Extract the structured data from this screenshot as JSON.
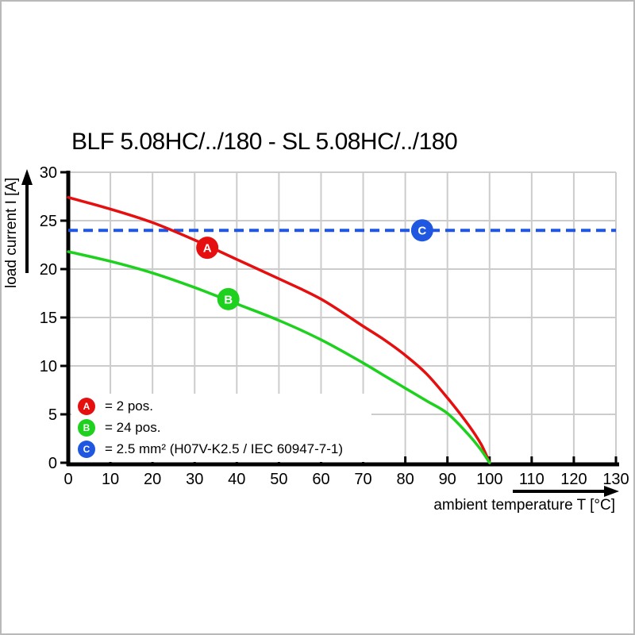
{
  "title": "BLF 5.08HC/../180 - SL 5.08HC/../180",
  "colors": {
    "red": "#e60f0f",
    "green": "#1ed11e",
    "blue": "#1f57e0",
    "grid": "#cccccc",
    "axis": "#000000",
    "background": "#ffffff",
    "frame": "#b9b9b9"
  },
  "chart_data": {
    "type": "line",
    "title": "BLF 5.08HC/../180 - SL 5.08HC/../180",
    "xlabel": "ambient temperature T [°C]",
    "ylabel": "load current I [A]",
    "xlim": [
      0,
      130
    ],
    "ylim": [
      0,
      30
    ],
    "xticks": [
      0,
      10,
      20,
      30,
      40,
      50,
      60,
      70,
      80,
      90,
      100,
      110,
      120,
      130
    ],
    "yticks": [
      0,
      5,
      10,
      15,
      20,
      25,
      30
    ],
    "grid": true,
    "legend_position": "inside-bottom-left",
    "series": [
      {
        "name": "A",
        "label": "= 2 pos.",
        "color": "#e60f0f",
        "line_style": "solid",
        "x": [
          0,
          10,
          20,
          30,
          40,
          50,
          60,
          70,
          75,
          80,
          85,
          90,
          95,
          98,
          100
        ],
        "y": [
          27.4,
          26.2,
          24.8,
          23.0,
          21.0,
          19.0,
          16.9,
          14.1,
          12.7,
          11.1,
          9.2,
          6.7,
          3.9,
          1.9,
          0
        ],
        "marker": {
          "letter": "A",
          "x": 33,
          "y": 22.2
        }
      },
      {
        "name": "B",
        "label": "= 24 pos.",
        "color": "#1ed11e",
        "line_style": "solid",
        "x": [
          0,
          10,
          20,
          30,
          40,
          50,
          60,
          70,
          75,
          80,
          85,
          90,
          95,
          98,
          100
        ],
        "y": [
          21.8,
          20.8,
          19.6,
          18.1,
          16.4,
          14.7,
          12.7,
          10.3,
          9.0,
          7.7,
          6.4,
          5.1,
          2.9,
          1.3,
          0
        ],
        "marker": {
          "letter": "B",
          "x": 38,
          "y": 16.9
        }
      },
      {
        "name": "C",
        "label": "= 2.5 mm² (H07V-K2.5 / IEC 60947-7-1)",
        "color": "#1f57e0",
        "line_style": "dashed",
        "x": [
          0,
          130
        ],
        "y": [
          24,
          24
        ],
        "marker": {
          "letter": "C",
          "x": 84,
          "y": 24
        }
      }
    ]
  }
}
